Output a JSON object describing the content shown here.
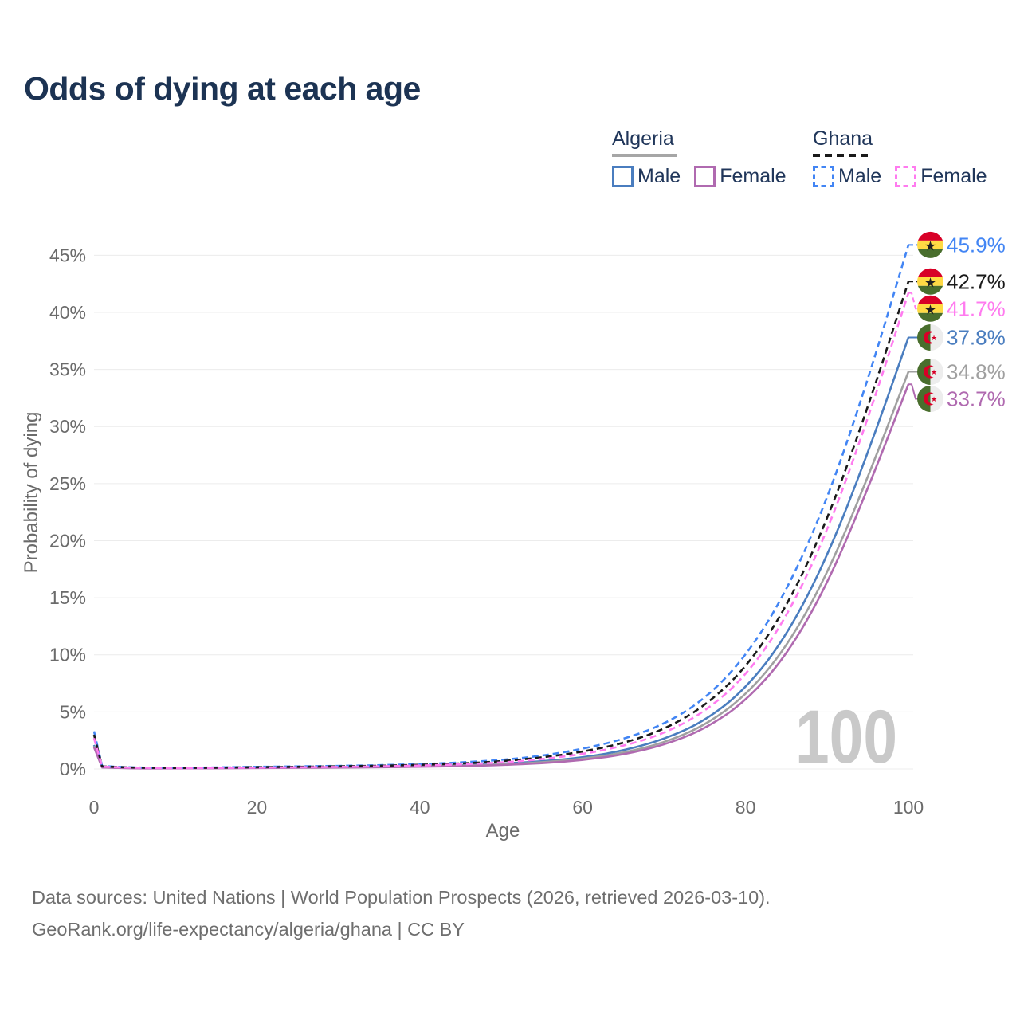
{
  "title": "Odds of dying at each age",
  "watermark": "100",
  "colors": {
    "title": "#1c3353",
    "axis": "#6b6b6b",
    "grid": "#ececec",
    "watermark": "#c9c9c9",
    "footer": "#6e6e6e",
    "legend_text": "#20365a",
    "algeria_underline": "#a6a6a6",
    "ghana_underline": "#1a1a1a"
  },
  "legend": {
    "groups": [
      {
        "country": "Algeria",
        "style": "solid",
        "items": [
          {
            "label": "Male"
          },
          {
            "label": "Female"
          }
        ]
      },
      {
        "country": "Ghana",
        "style": "dashed",
        "items": [
          {
            "label": "Male"
          },
          {
            "label": "Female"
          }
        ]
      }
    ]
  },
  "footer": {
    "line1": "Data sources: United Nations | World Population Prospects (2026, retrieved 2026-03-10).",
    "line2": "GeoRank.org/life-expectancy/algeria/ghana | CC BY"
  },
  "chart_data": {
    "type": "line",
    "title": "Odds of dying at each age",
    "xlabel": "Age",
    "ylabel": "Probability of dying",
    "xlim": [
      0,
      100
    ],
    "ylim_percent": [
      0,
      47
    ],
    "x_ticks": [
      0,
      20,
      40,
      60,
      80,
      100
    ],
    "y_ticks_percent": [
      0,
      5,
      10,
      15,
      20,
      25,
      30,
      35,
      40,
      45
    ],
    "grid": "horizontal",
    "legend_position": "top-right",
    "x": [
      0,
      1,
      5,
      10,
      15,
      20,
      25,
      30,
      35,
      40,
      45,
      50,
      55,
      60,
      65,
      70,
      75,
      80,
      85,
      90,
      95,
      100
    ],
    "series": [
      {
        "name": "Ghana Male",
        "country": "Ghana",
        "sex": "Male",
        "color": "#4285f4",
        "dash": true,
        "end_label": "45.9%",
        "end_value": 45.9,
        "values": [
          3.3,
          0.25,
          0.12,
          0.1,
          0.13,
          0.19,
          0.23,
          0.27,
          0.33,
          0.42,
          0.57,
          0.78,
          1.15,
          1.75,
          2.6,
          3.9,
          6.1,
          9.8,
          15.5,
          23.5,
          34.0,
          45.9
        ]
      },
      {
        "name": "Ghana Both sexes",
        "country": "Ghana",
        "sex": "Both",
        "color": "#1a1a1a",
        "dash": true,
        "end_label": "42.7%",
        "end_value": 42.7,
        "values": [
          3.0,
          0.22,
          0.11,
          0.09,
          0.11,
          0.16,
          0.19,
          0.23,
          0.28,
          0.36,
          0.48,
          0.67,
          1.0,
          1.5,
          2.25,
          3.45,
          5.5,
          8.8,
          14.1,
          21.7,
          31.6,
          42.7
        ]
      },
      {
        "name": "Ghana Female",
        "country": "Ghana",
        "sex": "Female",
        "color": "#ff7bef",
        "dash": true,
        "end_label": "41.7%",
        "end_value": 41.7,
        "values": [
          2.7,
          0.2,
          0.1,
          0.08,
          0.09,
          0.12,
          0.15,
          0.18,
          0.23,
          0.3,
          0.4,
          0.56,
          0.85,
          1.3,
          2.0,
          3.1,
          5.0,
          8.1,
          13.2,
          20.7,
          30.6,
          41.7
        ]
      },
      {
        "name": "Algeria Male",
        "country": "Algeria",
        "sex": "Male",
        "color": "#4a7dbf",
        "dash": false,
        "end_label": "37.8%",
        "end_value": 37.8,
        "values": [
          2.1,
          0.15,
          0.07,
          0.06,
          0.08,
          0.12,
          0.14,
          0.16,
          0.2,
          0.25,
          0.33,
          0.46,
          0.67,
          1.0,
          1.6,
          2.6,
          4.2,
          7.0,
          11.6,
          18.5,
          27.6,
          37.8
        ]
      },
      {
        "name": "Algeria Both sexes",
        "country": "Algeria",
        "sex": "Both",
        "color": "#a0a0a0",
        "dash": false,
        "end_label": "34.8%",
        "end_value": 34.8,
        "values": [
          2.0,
          0.14,
          0.06,
          0.05,
          0.07,
          0.1,
          0.12,
          0.14,
          0.17,
          0.22,
          0.29,
          0.4,
          0.58,
          0.88,
          1.4,
          2.3,
          3.8,
          6.4,
          10.6,
          17.0,
          25.5,
          34.8
        ]
      },
      {
        "name": "Algeria Female",
        "country": "Algeria",
        "sex": "Female",
        "color": "#b06ab0",
        "dash": false,
        "end_label": "33.7%",
        "end_value": 33.7,
        "values": [
          1.9,
          0.13,
          0.05,
          0.05,
          0.06,
          0.08,
          0.1,
          0.12,
          0.15,
          0.19,
          0.25,
          0.34,
          0.5,
          0.77,
          1.25,
          2.1,
          3.5,
          5.9,
          9.9,
          16.1,
          24.5,
          33.7
        ]
      }
    ]
  }
}
